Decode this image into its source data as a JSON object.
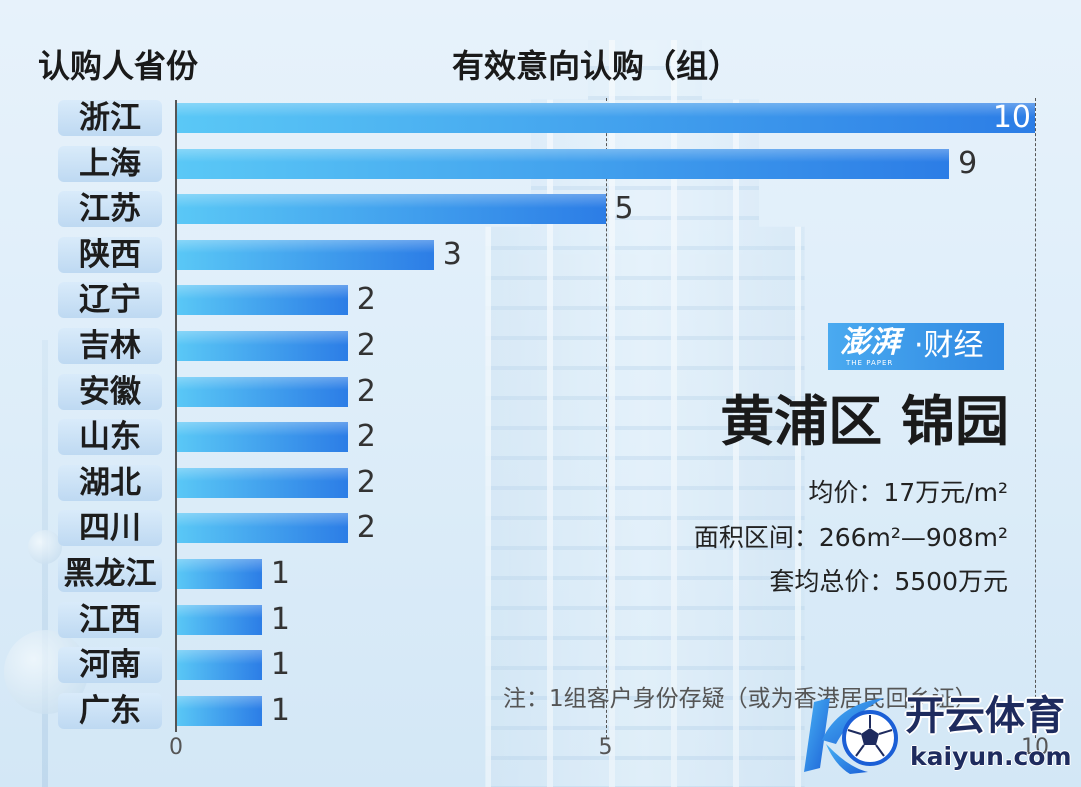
{
  "chart_data": {
    "type": "bar",
    "orientation": "horizontal",
    "category_header": "认购人省份",
    "value_header": "有效意向认购（组）",
    "categories": [
      "浙江",
      "上海",
      "江苏",
      "陕西",
      "辽宁",
      "吉林",
      "安徽",
      "山东",
      "湖北",
      "四川",
      "黑龙江",
      "江西",
      "河南",
      "广东"
    ],
    "values": [
      10,
      9,
      5,
      3,
      2,
      2,
      2,
      2,
      2,
      2,
      1,
      1,
      1,
      1
    ],
    "xlim": [
      0,
      10
    ],
    "x_ticks": [
      0,
      5,
      10
    ],
    "x_gridlines": [
      5,
      10
    ]
  },
  "brand": {
    "name": "澎湃",
    "tagline": "THE PAPER",
    "section": "·财经"
  },
  "project": {
    "title": "黄浦区 锦园",
    "stats": [
      {
        "text": "均价：17万元/m²"
      },
      {
        "text": "面积区间：266m²—908m²"
      },
      {
        "text": "套均总价：5500万元"
      }
    ]
  },
  "note": "注：1组客户身份存疑（或为香港居民回乡证）",
  "watermark": {
    "name": "开云体育",
    "domain": "kaiyun.com"
  },
  "colors": {
    "bar_start": "#5ac8f6",
    "bar_end": "#2c7de6",
    "pill_top": "#d9ebfa",
    "pill_bottom": "#bed9f2",
    "grid": "#555555",
    "logo_start": "#4aaaf0",
    "logo_end": "#2f88e2"
  }
}
